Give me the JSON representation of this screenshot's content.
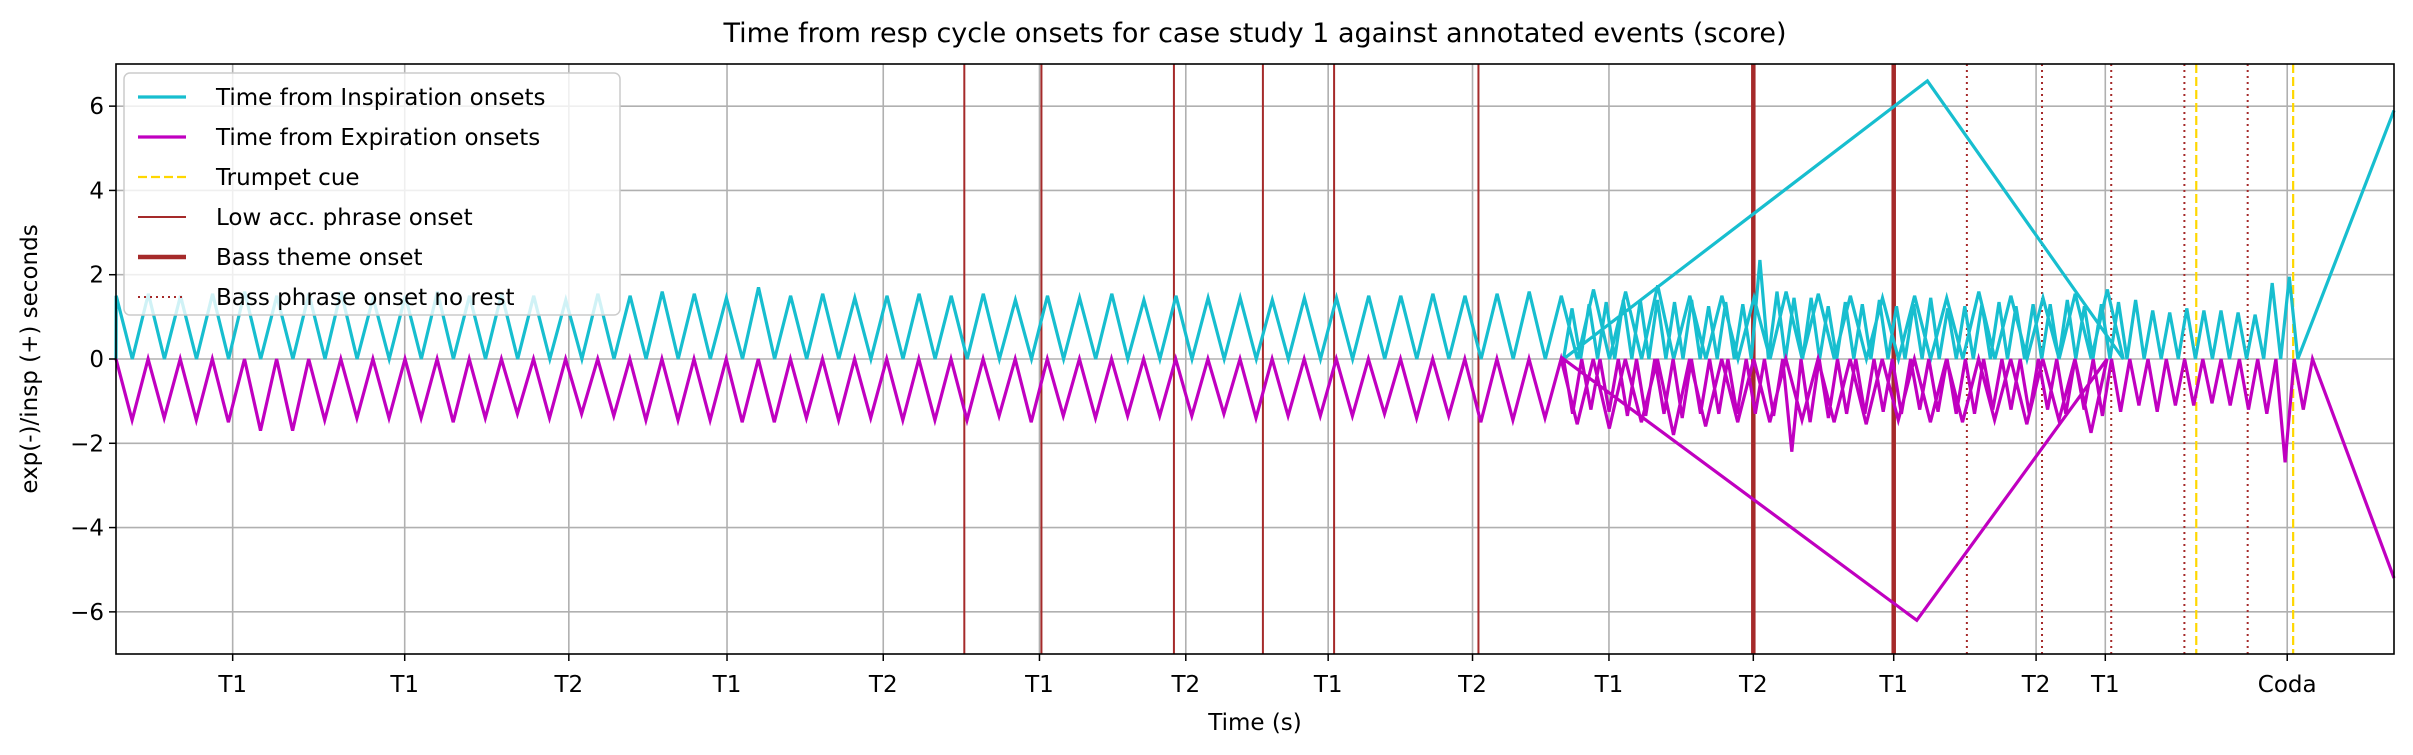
{
  "chart_data": {
    "type": "line",
    "title": "Time from resp cycle onsets for case study 1 against annotated events (score)",
    "xlabel": "Time (s)",
    "ylabel": "exp(-)/insp (+) seconds",
    "xlim": [
      0,
      576
    ],
    "ylim": [
      -7,
      7
    ],
    "yticks": [
      -6,
      -4,
      -2,
      0,
      2,
      4,
      6
    ],
    "grid": true,
    "legend_position": "top-left",
    "xticks": [
      {
        "x": 29.5,
        "label": "T1"
      },
      {
        "x": 73,
        "label": "T1"
      },
      {
        "x": 114.5,
        "label": "T2"
      },
      {
        "x": 154.5,
        "label": "T1"
      },
      {
        "x": 194,
        "label": "T2"
      },
      {
        "x": 233.5,
        "label": "T1"
      },
      {
        "x": 270.5,
        "label": "T2"
      },
      {
        "x": 306.5,
        "label": "T1"
      },
      {
        "x": 343,
        "label": "T2"
      },
      {
        "x": 377.5,
        "label": "T1"
      },
      {
        "x": 414,
        "label": "T2"
      },
      {
        "x": 449.5,
        "label": "T1"
      },
      {
        "x": 485.5,
        "label": "T2"
      },
      {
        "x": 503,
        "label": "T1"
      },
      {
        "x": 549,
        "label": "Coda"
      }
    ],
    "colors": {
      "inspiration": "#17becf",
      "expiration": "#c000c0",
      "trumpet": "#ffd700",
      "low_acc": "#a52a2a",
      "bass_theme": "#a52a2a",
      "bass_phrase": "#a52a2a"
    },
    "series": [
      {
        "name": "Time from Inspiration onsets",
        "key": "inspiration"
      },
      {
        "name": "Time from Expiration onsets",
        "key": "expiration"
      }
    ],
    "inspiration_peaks": [
      1.5,
      1.55,
      1.5,
      1.55,
      1.6,
      1.5,
      1.55,
      1.6,
      1.45,
      1.5,
      1.6,
      1.5,
      1.55,
      1.5,
      1.4,
      1.55,
      1.5,
      1.6,
      1.55,
      1.45,
      1.7,
      1.5,
      1.55,
      1.45,
      1.5,
      1.55,
      1.5,
      1.55,
      1.4,
      1.5,
      1.45,
      1.55,
      1.4,
      1.5,
      1.45,
      1.45,
      1.4,
      1.45,
      1.45,
      1.5,
      1.5,
      1.55,
      1.5,
      1.55,
      1.6,
      1.5,
      1.65,
      1.6,
      1.75,
      1.5,
      1.5,
      1.45,
      1.6,
      1.55,
      1.5,
      1.45,
      1.5,
      1.45,
      1.6,
      1.5,
      1.45,
      1.55,
      1.65,
      6.6,
      1.2,
      1.3,
      1.35,
      1.4,
      1.4,
      1.4,
      1.35,
      1.4,
      1.25,
      1.35,
      1.3,
      2.35,
      1.6,
      1.45,
      1.45,
      1.25,
      1.35,
      1.3,
      1.4,
      1.25,
      1.3,
      1.45,
      1.2,
      1.25,
      1.3,
      1.35,
      1.25,
      1.3,
      1.3,
      1.4,
      1.25,
      1.3,
      1.35,
      1.4,
      1.15,
      1.1,
      1.2,
      1.15,
      1.15,
      1.1,
      1.05,
      1.8,
      1.95,
      5.9
    ],
    "expiration_troughs": [
      -1.45,
      -1.4,
      -1.45,
      -1.5,
      -1.7,
      -1.7,
      -1.45,
      -1.4,
      -1.4,
      -1.4,
      -1.5,
      -1.4,
      -1.3,
      -1.4,
      -1.3,
      -1.35,
      -1.45,
      -1.45,
      -1.45,
      -1.5,
      -1.5,
      -1.4,
      -1.45,
      -1.4,
      -1.45,
      -1.45,
      -1.45,
      -1.35,
      -1.5,
      -1.35,
      -1.4,
      -1.35,
      -1.35,
      -1.35,
      -1.3,
      -1.4,
      -1.35,
      -1.35,
      -1.35,
      -1.3,
      -1.4,
      -1.35,
      -1.5,
      -1.45,
      -1.4,
      -1.55,
      -1.65,
      -1.5,
      -1.8,
      -1.6,
      -1.5,
      -1.5,
      -1.45,
      -1.5,
      -1.55,
      -1.45,
      -1.5,
      -1.5,
      -1.45,
      -1.55,
      -1.45,
      -1.75,
      -6.2,
      -1.3,
      -1.2,
      -1.25,
      -1.35,
      -1.35,
      -1.3,
      -1.4,
      -1.3,
      -1.3,
      -1.3,
      -1.3,
      -1.35,
      -2.2,
      -1.5,
      -1.4,
      -1.3,
      -1.3,
      -1.25,
      -1.3,
      -1.2,
      -1.25,
      -1.3,
      -1.3,
      -1.2,
      -1.2,
      -1.3,
      -1.2,
      -1.3,
      -1.2,
      -1.35,
      -1.25,
      -1.1,
      -1.25,
      -1.1,
      -1.1,
      -1.05,
      -1.1,
      -1.2,
      -1.3,
      -2.45,
      -1.2,
      -5.2
    ],
    "events": {
      "trumpet_cue": [
        526,
        550.5
      ],
      "low_acc_phrase_onset": [
        214.5,
        234,
        267.5,
        290,
        308,
        344.5
      ],
      "bass_theme_onset": [
        414,
        449.5
      ],
      "bass_phrase_onset_no_rest": [
        468,
        487,
        504.5,
        523,
        539
      ]
    },
    "legend": [
      {
        "label": "Time from Inspiration onsets",
        "style": "inspiration"
      },
      {
        "label": "Time from Expiration onsets",
        "style": "expiration"
      },
      {
        "label": "Trumpet cue",
        "style": "trumpet"
      },
      {
        "label": "Low acc. phrase onset",
        "style": "low_acc"
      },
      {
        "label": "Bass theme onset",
        "style": "bass_theme"
      },
      {
        "label": "Bass phrase onset no rest",
        "style": "bass_phrase"
      }
    ]
  }
}
